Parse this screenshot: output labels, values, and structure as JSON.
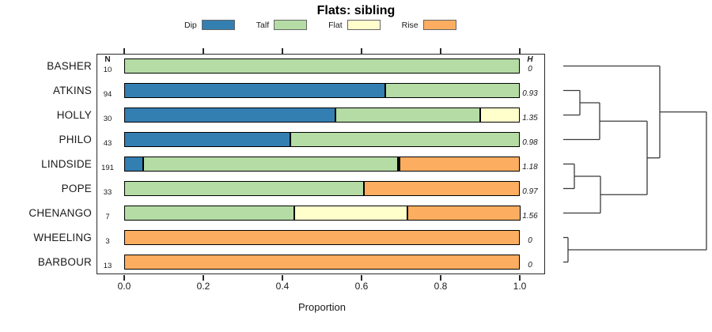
{
  "title": "Flats: sibling",
  "colors": {
    "Dip": "#337FB2",
    "Talf": "#B4DCA4",
    "Flat": "#FFFFCC",
    "Rise": "#FCAD60"
  },
  "legend": {
    "items": [
      {
        "label": "Dip",
        "color": "#337FB2"
      },
      {
        "label": "Talf",
        "color": "#B4DCA4"
      },
      {
        "label": "Flat",
        "color": "#FFFFCC"
      },
      {
        "label": "Rise",
        "color": "#FCAD60"
      }
    ]
  },
  "columns": {
    "n_header": "N",
    "h_header": "H"
  },
  "axis": {
    "label": "Proportion",
    "ticks": [
      "0.0",
      "0.2",
      "0.4",
      "0.6",
      "0.8",
      "1.0"
    ],
    "tick_values": [
      0,
      0.2,
      0.4,
      0.6,
      0.8,
      1.0
    ]
  },
  "chart_data": {
    "type": "bar",
    "orientation": "horizontal-stacked",
    "title": "Flats: sibling",
    "xlabel": "Proportion",
    "xlim": [
      0,
      1
    ],
    "legend_position": "top",
    "categories": [
      "BASHER",
      "ATKINS",
      "HOLLY",
      "PHILO",
      "LINDSIDE",
      "POPE",
      "CHENANGO",
      "WHEELING",
      "BARBOUR"
    ],
    "n_values": [
      "10",
      "94",
      "30",
      "43",
      "191",
      "33",
      "7",
      "3",
      "13"
    ],
    "h_values": [
      "0",
      "0.93",
      "1.35",
      "0.98",
      "1.18",
      "0.97",
      "1.56",
      "0",
      "0"
    ],
    "series": [
      {
        "name": "Dip",
        "values": [
          0,
          0.66,
          0.533,
          0.419,
          0.047,
          0,
          0,
          0,
          0
        ]
      },
      {
        "name": "Talf",
        "values": [
          1.0,
          0.34,
          0.367,
          0.581,
          0.644,
          0.606,
          0.429,
          0,
          0
        ]
      },
      {
        "name": "Flat",
        "values": [
          0,
          0,
          0.1,
          0,
          0.005,
          0,
          0.286,
          0,
          0
        ]
      },
      {
        "name": "Rise",
        "values": [
          0,
          0,
          0,
          0,
          0.304,
          0.394,
          0.286,
          1.0,
          1.0
        ]
      }
    ]
  },
  "dendrogram": {
    "newick": "((BASHER,(((ATKINS,HOLLY),PHILO),((LINDSIDE,POPE),CHENANGO))),(WHEELING,BARBOUR))",
    "segments": [
      [
        17,
        28.5,
        139,
        28.5
      ],
      [
        17,
        59.5,
        38,
        59.5
      ],
      [
        17,
        90.5,
        38,
        90.5
      ],
      [
        38,
        59.5,
        38,
        90.5
      ],
      [
        38,
        75,
        63,
        75
      ],
      [
        17,
        121.5,
        63,
        121.5
      ],
      [
        63,
        75,
        63,
        121.5
      ],
      [
        63,
        98.25,
        123,
        98.25
      ],
      [
        17,
        152.5,
        31,
        152.5
      ],
      [
        17,
        183.5,
        31,
        183.5
      ],
      [
        31,
        152.5,
        31,
        183.5
      ],
      [
        31,
        168,
        64,
        168
      ],
      [
        17,
        214.5,
        64,
        214.5
      ],
      [
        64,
        168,
        64,
        214.5
      ],
      [
        64,
        191.25,
        123,
        191.25
      ],
      [
        123,
        98.25,
        123,
        191.25
      ],
      [
        123,
        144.75,
        139,
        144.75
      ],
      [
        139,
        28.5,
        139,
        144.75
      ],
      [
        139,
        86.6,
        198,
        86.6
      ],
      [
        17,
        245.5,
        23,
        245.5
      ],
      [
        17,
        276.5,
        23,
        276.5
      ],
      [
        23,
        245.5,
        23,
        276.5
      ],
      [
        23,
        261,
        198,
        261
      ],
      [
        198,
        86.6,
        198,
        261
      ]
    ]
  }
}
